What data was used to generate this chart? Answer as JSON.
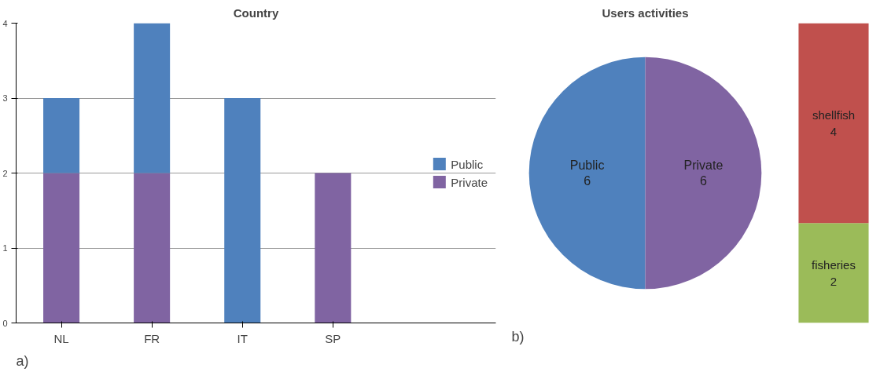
{
  "chart_data": [
    {
      "type": "bar",
      "title": "Country",
      "categories": [
        "NL",
        "FR",
        "IT",
        "SP"
      ],
      "stacked": true,
      "series": [
        {
          "name": "Private",
          "color": "#8064a2",
          "values": [
            2,
            2,
            null,
            2
          ]
        },
        {
          "name": "Public",
          "color": "#4f81bd",
          "values": [
            1,
            2,
            3,
            null
          ]
        }
      ],
      "ylim": [
        0,
        4
      ],
      "yticks": [
        0,
        1,
        2,
        3,
        4
      ],
      "grid": "y",
      "legend": "right",
      "annotations": [
        "a)"
      ]
    },
    {
      "type": "pie",
      "title": "Users activities",
      "categories": [
        "Public",
        "Private"
      ],
      "values": [
        6,
        6
      ],
      "colors": [
        "#4f81bd",
        "#8064a2"
      ],
      "data_labels": true,
      "annotations": [
        "b)"
      ]
    },
    {
      "type": "bar",
      "categories": [
        null
      ],
      "stacked": true,
      "tick_labels": false,
      "data_labels": true,
      "series": [
        {
          "name": "fisheries",
          "color": "#9bbb59",
          "values": [
            2
          ]
        },
        {
          "name": "shellfish",
          "color": "#c0504d",
          "values": [
            4
          ]
        }
      ]
    }
  ]
}
